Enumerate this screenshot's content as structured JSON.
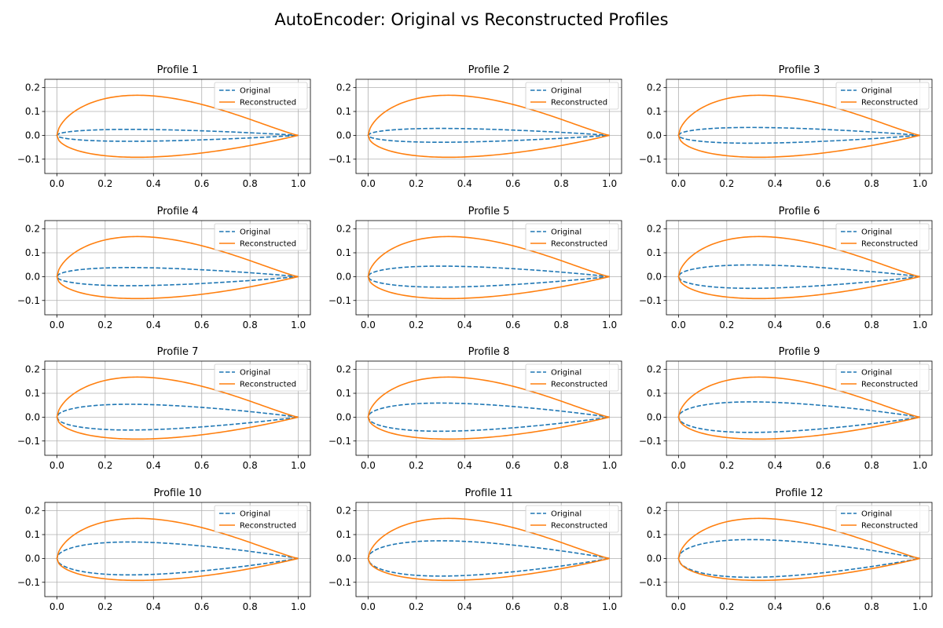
{
  "figure_title": "AutoEncoder: Original vs Reconstructed Profiles",
  "colors": {
    "original": "#1f77b4",
    "reconstructed": "#ff7f0e",
    "grid": "#b0b0b0"
  },
  "chart_data": {
    "type": "line",
    "layout": {
      "rows": 4,
      "cols": 3
    },
    "xlim": [
      -0.05,
      1.05
    ],
    "ylim": [
      -0.16,
      0.235
    ],
    "xticks": [
      0.0,
      0.2,
      0.4,
      0.6,
      0.8,
      1.0
    ],
    "yticks": [
      -0.1,
      0.0,
      0.1,
      0.2
    ],
    "grid": true,
    "legend_position": "top-right",
    "legend": [
      "Original",
      "Reconstructed"
    ],
    "series_styles": {
      "Original": "dashed",
      "Reconstructed": "solid"
    },
    "reconstructed": {
      "upper_max": 0.168,
      "upper_max_at": 0.35,
      "lower_min": -0.092,
      "lower_min_at": 0.28
    },
    "subplots": [
      {
        "title": "Profile 1",
        "original_max_thickness": 0.025
      },
      {
        "title": "Profile 2",
        "original_max_thickness": 0.029
      },
      {
        "title": "Profile 3",
        "original_max_thickness": 0.033
      },
      {
        "title": "Profile 4",
        "original_max_thickness": 0.038
      },
      {
        "title": "Profile 5",
        "original_max_thickness": 0.044
      },
      {
        "title": "Profile 6",
        "original_max_thickness": 0.049
      },
      {
        "title": "Profile 7",
        "original_max_thickness": 0.054
      },
      {
        "title": "Profile 8",
        "original_max_thickness": 0.059
      },
      {
        "title": "Profile 9",
        "original_max_thickness": 0.064
      },
      {
        "title": "Profile 10",
        "original_max_thickness": 0.069
      },
      {
        "title": "Profile 11",
        "original_max_thickness": 0.074
      },
      {
        "title": "Profile 12",
        "original_max_thickness": 0.079
      }
    ]
  }
}
